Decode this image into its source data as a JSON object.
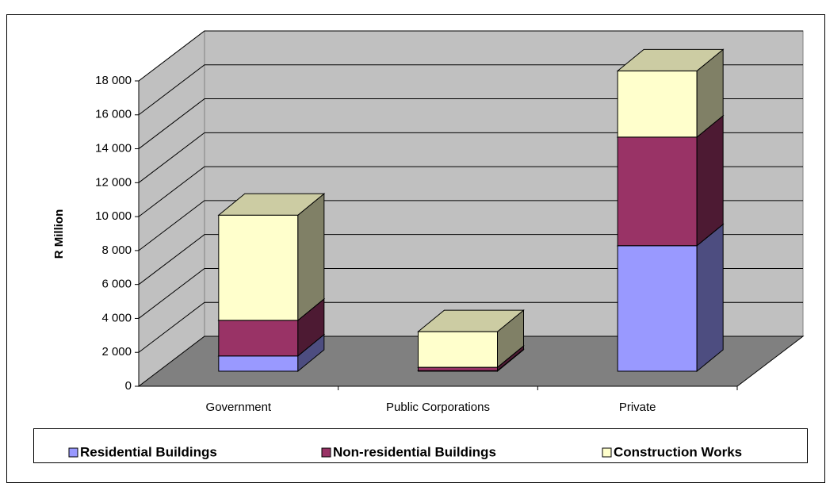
{
  "chart_data": {
    "type": "bar3d_stacked",
    "y_label": "R Million",
    "categories": [
      "Government",
      "Public Corporations",
      "Private"
    ],
    "series": [
      {
        "name": "Residential Buildings",
        "color": "#9999ff",
        "values": [
          900,
          30,
          7400
        ]
      },
      {
        "name": "Non-residential Buildings",
        "color": "#993366",
        "values": [
          2100,
          200,
          6400
        ]
      },
      {
        "name": "Construction Works",
        "color": "#ffffcc",
        "values": [
          6200,
          2100,
          3900
        ]
      }
    ],
    "ylim": [
      0,
      18000
    ],
    "yticks": [
      0,
      {
        "value": 2000,
        "label": "2 000"
      },
      {
        "value": 4000,
        "label": "4 000"
      },
      {
        "value": 6000,
        "label": "6 000"
      },
      {
        "value": 8000,
        "label": "8 000"
      },
      {
        "value": 10000,
        "label": "10 000"
      },
      {
        "value": 12000,
        "label": "12 000"
      },
      {
        "value": 14000,
        "label": "14 000"
      },
      {
        "value": 16000,
        "label": "16 000"
      },
      {
        "value": 18000,
        "label": "18 000"
      }
    ],
    "grid": true,
    "legend": "bottom"
  }
}
